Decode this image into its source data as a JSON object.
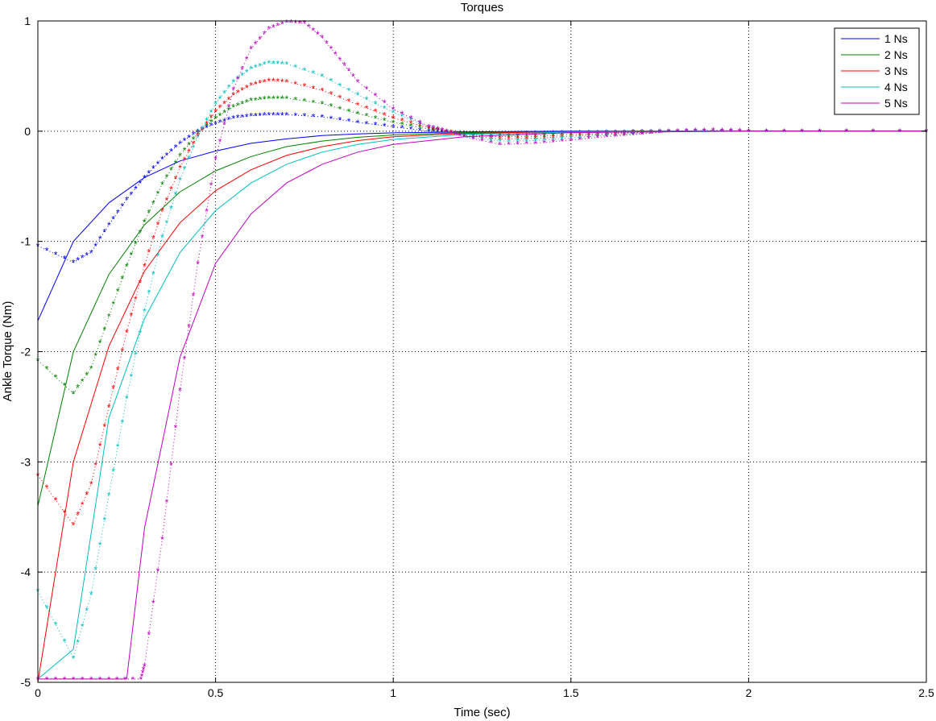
{
  "chart_data": {
    "type": "line",
    "title": "Torques",
    "xlabel": "Time (sec)",
    "ylabel": "Ankle Torque (Nm)",
    "xlim": [
      0,
      2.5
    ],
    "ylim": [
      -5,
      1
    ],
    "xticks": [
      0,
      0.5,
      1,
      1.5,
      2,
      2.5
    ],
    "xtick_labels": [
      "0",
      "0.5",
      "1",
      "1.5",
      "2",
      "2.5"
    ],
    "yticks": [
      -5,
      -4,
      -3,
      -2,
      -1,
      0,
      1
    ],
    "ytick_labels": [
      "-5",
      "-4",
      "-3",
      "-2",
      "-1",
      "0",
      "1"
    ],
    "grid": true,
    "legend_position": "top-right",
    "series": [
      {
        "name": "1 Ns",
        "color": "#0000ff",
        "solid": {
          "x": [
            0,
            0.1,
            0.2,
            0.3,
            0.4,
            0.5,
            0.6,
            0.7,
            0.8,
            0.9,
            1.0,
            1.2,
            1.5,
            2.0,
            2.5
          ],
          "y": [
            -1.72,
            -1.0,
            -0.65,
            -0.42,
            -0.27,
            -0.18,
            -0.11,
            -0.07,
            -0.04,
            -0.025,
            -0.015,
            -0.006,
            0,
            0,
            0
          ]
        },
        "markers": {
          "x": [
            0,
            0.1,
            0.15,
            0.2,
            0.25,
            0.3,
            0.35,
            0.4,
            0.45,
            0.5,
            0.55,
            0.6,
            0.65,
            0.7,
            0.8,
            0.9,
            1.0,
            1.1,
            1.15,
            1.2,
            1.3,
            1.4,
            1.5,
            1.6,
            1.7,
            1.8,
            1.9,
            2.0,
            2.2,
            2.5
          ],
          "y": [
            -1.04,
            -1.19,
            -1.1,
            -0.85,
            -0.62,
            -0.42,
            -0.25,
            -0.11,
            0,
            0.07,
            0.12,
            0.14,
            0.15,
            0.15,
            0.13,
            0.08,
            0.04,
            0.0,
            -0.01,
            -0.02,
            -0.025,
            -0.02,
            -0.015,
            -0.01,
            -0.005,
            0,
            0,
            0,
            0,
            0
          ]
        }
      },
      {
        "name": "2 Ns",
        "color": "#008000",
        "solid": {
          "x": [
            0,
            0.1,
            0.2,
            0.3,
            0.4,
            0.5,
            0.6,
            0.7,
            0.8,
            0.9,
            1.0,
            1.2,
            1.5,
            2.0,
            2.5
          ],
          "y": [
            -3.4,
            -2.0,
            -1.3,
            -0.85,
            -0.55,
            -0.36,
            -0.23,
            -0.14,
            -0.09,
            -0.055,
            -0.035,
            -0.013,
            -0.003,
            0,
            0
          ]
        },
        "markers": {
          "x": [
            0,
            0.1,
            0.15,
            0.2,
            0.25,
            0.3,
            0.35,
            0.4,
            0.45,
            0.5,
            0.55,
            0.6,
            0.65,
            0.7,
            0.8,
            0.9,
            1.0,
            1.1,
            1.15,
            1.2,
            1.3,
            1.4,
            1.5,
            1.6,
            1.7,
            1.8,
            1.9,
            2.0,
            2.2,
            2.5
          ],
          "y": [
            -2.08,
            -2.38,
            -2.15,
            -1.68,
            -1.22,
            -0.82,
            -0.48,
            -0.22,
            -0.02,
            0.12,
            0.22,
            0.28,
            0.3,
            0.3,
            0.25,
            0.16,
            0.08,
            0.02,
            0.0,
            -0.03,
            -0.05,
            -0.045,
            -0.03,
            -0.02,
            -0.01,
            0,
            0,
            0,
            0,
            0
          ]
        }
      },
      {
        "name": "3 Ns",
        "color": "#ff0000",
        "solid": {
          "x": [
            0,
            0.1,
            0.2,
            0.3,
            0.4,
            0.5,
            0.6,
            0.7,
            0.8,
            0.9,
            1.0,
            1.2,
            1.5,
            2.0,
            2.5
          ],
          "y": [
            -5.0,
            -3.0,
            -1.95,
            -1.27,
            -0.83,
            -0.54,
            -0.35,
            -0.22,
            -0.14,
            -0.085,
            -0.05,
            -0.02,
            -0.005,
            0,
            0
          ]
        },
        "markers": {
          "x": [
            0,
            0.1,
            0.15,
            0.2,
            0.25,
            0.3,
            0.35,
            0.4,
            0.45,
            0.5,
            0.55,
            0.6,
            0.65,
            0.7,
            0.8,
            0.9,
            1.0,
            1.1,
            1.15,
            1.2,
            1.3,
            1.4,
            1.5,
            1.6,
            1.7,
            1.8,
            1.9,
            2.0,
            2.2,
            2.5
          ],
          "y": [
            -3.12,
            -3.57,
            -3.2,
            -2.5,
            -1.82,
            -1.22,
            -0.72,
            -0.33,
            -0.04,
            0.18,
            0.33,
            0.42,
            0.46,
            0.45,
            0.37,
            0.24,
            0.12,
            0.03,
            0.0,
            -0.04,
            -0.07,
            -0.065,
            -0.045,
            -0.03,
            -0.015,
            0,
            0,
            0,
            0,
            0
          ]
        }
      },
      {
        "name": "4 Ns",
        "color": "#00bfbf",
        "solid": {
          "x": [
            0,
            0.1,
            0.2,
            0.3,
            0.4,
            0.5,
            0.6,
            0.7,
            0.8,
            0.9,
            1.0,
            1.2,
            1.5,
            2.0,
            2.5
          ],
          "y": [
            -4.97,
            -4.7,
            -2.6,
            -1.7,
            -1.1,
            -0.72,
            -0.47,
            -0.3,
            -0.19,
            -0.12,
            -0.075,
            -0.03,
            -0.008,
            0,
            0
          ]
        },
        "markers": {
          "x": [
            0,
            0.1,
            0.15,
            0.2,
            0.25,
            0.3,
            0.35,
            0.4,
            0.45,
            0.5,
            0.55,
            0.6,
            0.65,
            0.7,
            0.8,
            0.9,
            1.0,
            1.1,
            1.15,
            1.2,
            1.3,
            1.4,
            1.5,
            1.6,
            1.7,
            1.8,
            1.9,
            2.0,
            2.2,
            2.5
          ],
          "y": [
            -4.17,
            -4.78,
            -4.2,
            -3.3,
            -2.42,
            -1.63,
            -0.96,
            -0.44,
            -0.05,
            0.25,
            0.45,
            0.57,
            0.62,
            0.61,
            0.5,
            0.33,
            0.17,
            0.04,
            0.0,
            -0.05,
            -0.09,
            -0.085,
            -0.06,
            -0.04,
            -0.02,
            0,
            0,
            0,
            0,
            0
          ]
        }
      },
      {
        "name": "5 Ns",
        "color": "#bf00bf",
        "solid": {
          "x": [
            0,
            0.1,
            0.2,
            0.25,
            0.3,
            0.4,
            0.5,
            0.6,
            0.7,
            0.8,
            0.9,
            1.0,
            1.2,
            1.5,
            2.0,
            2.5
          ],
          "y": [
            -4.97,
            -4.97,
            -4.97,
            -4.97,
            -3.6,
            -2.05,
            -1.2,
            -0.75,
            -0.47,
            -0.3,
            -0.19,
            -0.12,
            -0.05,
            -0.013,
            0,
            0
          ]
        },
        "markers": {
          "x": [
            0,
            0.1,
            0.2,
            0.29,
            0.3,
            0.35,
            0.4,
            0.45,
            0.5,
            0.55,
            0.6,
            0.65,
            0.7,
            0.75,
            0.8,
            0.85,
            0.9,
            1.0,
            1.1,
            1.15,
            1.2,
            1.3,
            1.4,
            1.5,
            1.6,
            1.7,
            1.8,
            1.9,
            2.0,
            2.2,
            2.5
          ],
          "y": [
            -4.97,
            -4.97,
            -4.97,
            -4.97,
            -4.85,
            -3.7,
            -2.35,
            -1.2,
            -0.25,
            0.38,
            0.75,
            0.93,
            0.99,
            0.98,
            0.85,
            0.65,
            0.45,
            0.2,
            0.04,
            0.0,
            -0.05,
            -0.12,
            -0.11,
            -0.08,
            -0.05,
            -0.025,
            0,
            0.01,
            0,
            0,
            0
          ]
        }
      }
    ]
  }
}
